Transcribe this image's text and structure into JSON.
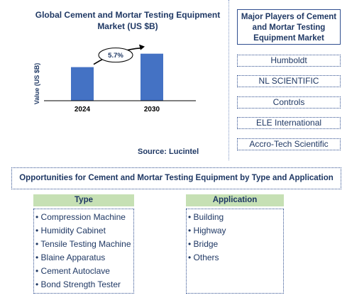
{
  "chart_data": {
    "type": "bar",
    "title": "Global Cement and Mortar Testing Equipment Market (US $B)",
    "ylabel": "Value (US $B)",
    "categories": [
      "2024",
      "2030"
    ],
    "values": [
      1.0,
      1.4
    ],
    "ylim": [
      0,
      1.9
    ],
    "annotation": "5.7%",
    "source": "Source: Lucintel",
    "colors": {
      "bar": "#4472c4",
      "title": "#1f3864",
      "axis": "#000000"
    }
  },
  "players": {
    "title": "Major Players of Cement and Mortar Testing Equipment Market",
    "items": [
      "Humboldt",
      "NL SCIENTIFIC",
      "Controls",
      "ELE International",
      "Accro-Tech Scientific"
    ]
  },
  "opportunities": {
    "title": "Opportunities for Cement and Mortar Testing Equipment by Type and Application",
    "type_header": "Type",
    "type_items": [
      "Compression Machine",
      "Humidity Cabinet",
      "Tensile Testing Machine",
      "Blaine Apparatus",
      "Cement Autoclave",
      "Bond Strength Tester"
    ],
    "application_header": "Application",
    "application_items": [
      "Building",
      "Highway",
      "Bridge",
      "Others"
    ],
    "header_color": "#c6e0b4"
  }
}
